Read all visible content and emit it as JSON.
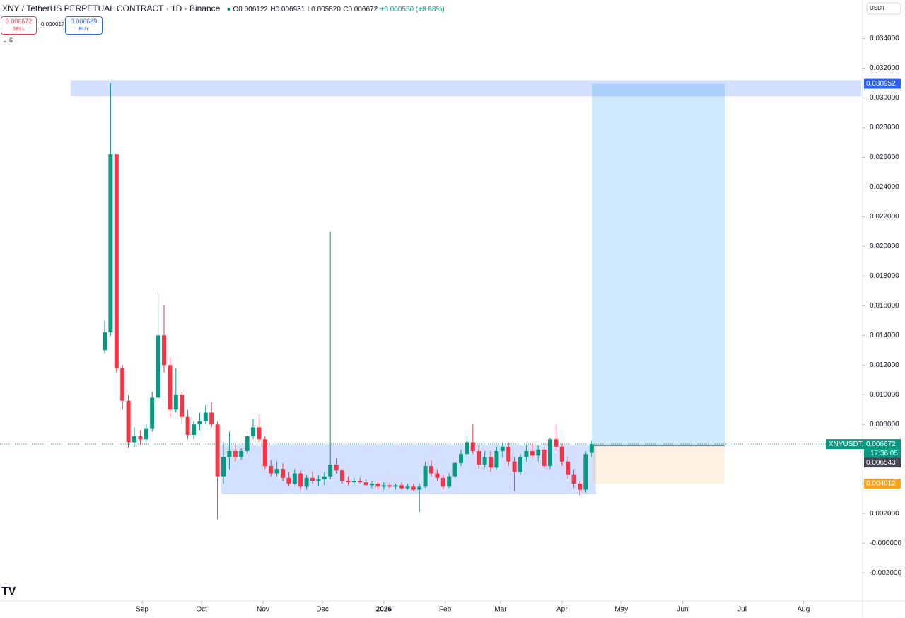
{
  "header": {
    "symbol": "XNY / TetherUS PERPETUAL CONTRACT · 1D · Binance",
    "open": "O0.006122",
    "high": "H0.006931",
    "low": "L0.005820",
    "close": "C0.006672",
    "change": "+0.000550 (+8.98%)",
    "sell_price": "0.006672",
    "sell": "SELL",
    "spread": "0.000017",
    "buy_price": "0.006689",
    "buy": "BUY",
    "indicators": "6",
    "currency": "USDT",
    "clock": "17:36:05"
  },
  "chart_data": {
    "type": "candlestick",
    "series": [
      {
        "name": "XNYUSDT.P",
        "up_color": "#089981",
        "down_color": "#f23645",
        "open": [
          0.013,
          0.0142,
          0.0262,
          0.0118,
          0.0096,
          0.0068,
          0.0072,
          0.007,
          0.0077,
          0.0098,
          0.014,
          0.012,
          0.009,
          0.01,
          0.0085,
          0.0073,
          0.008,
          0.0082,
          0.0088,
          0.008,
          0.0045,
          0.0058,
          0.0062,
          0.0058,
          0.0062,
          0.0072,
          0.0078,
          0.007,
          0.0052,
          0.0047,
          0.005,
          0.0044,
          0.004,
          0.0047,
          0.0038,
          0.0044,
          0.0042,
          0.0043,
          0.0045,
          0.0053,
          0.0049,
          0.0042,
          0.0041,
          0.0042,
          0.0041,
          0.0039,
          0.004,
          0.0038,
          0.0039,
          0.0038,
          0.0039,
          0.0037,
          0.0038,
          0.0036,
          0.0038,
          0.0052,
          0.0047,
          0.0044,
          0.0038,
          0.0045,
          0.0054,
          0.006,
          0.0068,
          0.0062,
          0.0053,
          0.0058,
          0.0051,
          0.0062,
          0.0065,
          0.0055,
          0.0048,
          0.0058,
          0.0062,
          0.0059,
          0.0063,
          0.0052,
          0.007,
          0.0065,
          0.0055,
          0.0046,
          0.004,
          0.0036,
          0.006122
        ],
        "high": [
          0.015,
          0.031,
          0.0262,
          0.012,
          0.01,
          0.0078,
          0.0076,
          0.008,
          0.0102,
          0.0169,
          0.016,
          0.0125,
          0.0118,
          0.0102,
          0.009,
          0.0082,
          0.0088,
          0.0093,
          0.0095,
          0.0082,
          0.0068,
          0.0075,
          0.0066,
          0.0064,
          0.0075,
          0.0084,
          0.0087,
          0.0072,
          0.0056,
          0.0055,
          0.0054,
          0.0048,
          0.005,
          0.0049,
          0.0046,
          0.0048,
          0.0046,
          0.0048,
          0.021,
          0.0057,
          0.005,
          0.0045,
          0.0044,
          0.0044,
          0.0043,
          0.0042,
          0.0042,
          0.0041,
          0.0041,
          0.004,
          0.0041,
          0.004,
          0.004,
          0.004,
          0.0055,
          0.0056,
          0.005,
          0.0046,
          0.0047,
          0.0056,
          0.0063,
          0.0072,
          0.008,
          0.0066,
          0.0062,
          0.0062,
          0.0065,
          0.0068,
          0.0068,
          0.0058,
          0.006,
          0.0066,
          0.0067,
          0.0066,
          0.0067,
          0.0071,
          0.008,
          0.0067,
          0.0058,
          0.005,
          0.0042,
          0.0062,
          0.006931
        ],
        "low": [
          0.0128,
          0.014,
          0.0115,
          0.009,
          0.0064,
          0.0065,
          0.0066,
          0.0068,
          0.0075,
          0.0096,
          0.0115,
          0.0085,
          0.0088,
          0.008,
          0.007,
          0.007,
          0.0076,
          0.008,
          0.0078,
          0.0016,
          0.004,
          0.005,
          0.0055,
          0.0056,
          0.006,
          0.007,
          0.0068,
          0.005,
          0.0045,
          0.0045,
          0.0042,
          0.0038,
          0.0039,
          0.0036,
          0.0036,
          0.004,
          0.0038,
          0.0039,
          0.0043,
          0.0047,
          0.004,
          0.0039,
          0.0039,
          0.004,
          0.0038,
          0.0037,
          0.0036,
          0.0036,
          0.0037,
          0.0036,
          0.0036,
          0.0036,
          0.0035,
          0.0021,
          0.0037,
          0.0045,
          0.0042,
          0.0036,
          0.0037,
          0.0044,
          0.0052,
          0.0058,
          0.006,
          0.005,
          0.0051,
          0.0048,
          0.005,
          0.0058,
          0.0052,
          0.0035,
          0.0046,
          0.0055,
          0.0057,
          0.0055,
          0.005,
          0.005,
          0.0062,
          0.0052,
          0.0043,
          0.0037,
          0.0032,
          0.0034,
          0.00582
        ],
        "close": [
          0.0142,
          0.0262,
          0.0118,
          0.0096,
          0.0068,
          0.0072,
          0.007,
          0.0077,
          0.0098,
          0.014,
          0.012,
          0.009,
          0.01,
          0.0085,
          0.0073,
          0.008,
          0.0082,
          0.0088,
          0.008,
          0.0045,
          0.0058,
          0.0062,
          0.0058,
          0.0062,
          0.0072,
          0.0078,
          0.007,
          0.0052,
          0.0047,
          0.005,
          0.0044,
          0.004,
          0.0047,
          0.0038,
          0.0044,
          0.0042,
          0.0043,
          0.0045,
          0.0053,
          0.0049,
          0.0042,
          0.0041,
          0.0042,
          0.0041,
          0.0039,
          0.004,
          0.0038,
          0.0039,
          0.0038,
          0.0039,
          0.0037,
          0.0038,
          0.0036,
          0.0038,
          0.0052,
          0.0047,
          0.0044,
          0.0038,
          0.0045,
          0.0054,
          0.006,
          0.0068,
          0.0062,
          0.0053,
          0.0058,
          0.0051,
          0.0062,
          0.0065,
          0.0055,
          0.0048,
          0.0058,
          0.0062,
          0.0059,
          0.0063,
          0.0052,
          0.007,
          0.0065,
          0.0055,
          0.0046,
          0.004,
          0.0036,
          0.006,
          0.006672
        ]
      }
    ],
    "price_label": "0.006672",
    "prev_label": "0.006543",
    "prev_price": 0.006543,
    "zones": [
      {
        "x": [
          -5.7,
          127.4
        ],
        "y": [
          0.0301,
          0.0312
        ],
        "color": "rgba(41,98,255,0.2)"
      },
      {
        "x": [
          19.6,
          82.7
        ],
        "y": [
          0.0033,
          0.0066
        ],
        "color": "rgba(41,98,255,0.2)"
      }
    ],
    "position": {
      "x": [
        82.1,
        104.4
      ],
      "entry": 0.00655,
      "target": 0.030952,
      "target_label": "0.030952",
      "stop": 0.004012,
      "stop_label": "0.004012",
      "profit_color": "rgba(33,150,243,0.22)",
      "loss_color": "rgba(245,190,110,0.2)"
    },
    "xlim": [
      -17.62,
      127.62
    ],
    "ylim": [
      -0.0039,
      0.0366
    ],
    "xticks": [
      {
        "value": 6.33,
        "label": "Sep"
      },
      {
        "value": 16.33,
        "label": "Oct"
      },
      {
        "value": 26.67,
        "label": "Nov"
      },
      {
        "value": 36.67,
        "label": "Dec"
      },
      {
        "value": 47,
        "label": "2026"
      },
      {
        "value": 57.33,
        "label": "Feb"
      },
      {
        "value": 66.67,
        "label": "Mar"
      },
      {
        "value": 77,
        "label": "Apr"
      },
      {
        "value": 87,
        "label": "May"
      },
      {
        "value": 97.33,
        "label": "Jun"
      },
      {
        "value": 107.33,
        "label": "Jul"
      },
      {
        "value": 117.67,
        "label": "Aug"
      }
    ],
    "yticks": [
      {
        "value": -0.002,
        "label": "-0.002000"
      },
      {
        "value": 0,
        "label": "-0.000000"
      },
      {
        "value": 0.002,
        "label": "0.002000"
      },
      {
        "value": 0.004,
        "label": "0.004000"
      },
      {
        "value": 0.006,
        "label": "0.006000"
      },
      {
        "value": 0.008,
        "label": "0.008000"
      },
      {
        "value": 0.01,
        "label": "0.010000"
      },
      {
        "value": 0.012,
        "label": "0.012000"
      },
      {
        "value": 0.014,
        "label": "0.014000"
      },
      {
        "value": 0.016,
        "label": "0.016000"
      },
      {
        "value": 0.018,
        "label": "0.018000"
      },
      {
        "value": 0.02,
        "label": "0.020000"
      },
      {
        "value": 0.022,
        "label": "0.022000"
      },
      {
        "value": 0.024,
        "label": "0.024000"
      },
      {
        "value": 0.026,
        "label": "0.026000"
      },
      {
        "value": 0.028,
        "label": "0.028000"
      },
      {
        "value": 0.03,
        "label": "0.030000"
      },
      {
        "value": 0.032,
        "label": "0.032000"
      },
      {
        "value": 0.034,
        "label": "0.034000"
      }
    ]
  }
}
